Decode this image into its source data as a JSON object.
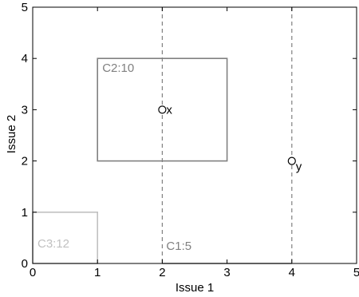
{
  "chart_data": {
    "type": "scatter",
    "xlabel": "Issue 1",
    "ylabel": "Issue 2",
    "xlim": [
      0,
      5
    ],
    "ylim": [
      0,
      5
    ],
    "xticks": [
      "0",
      "1",
      "2",
      "3",
      "4",
      "5"
    ],
    "yticks": [
      "0",
      "1",
      "2",
      "3",
      "4",
      "5"
    ],
    "grid": false,
    "points": [
      {
        "label": "x",
        "x": 2,
        "y": 3
      },
      {
        "label": "y",
        "x": 4,
        "y": 2
      }
    ],
    "vertical_lines": [
      {
        "x": 2,
        "style": "dashed"
      },
      {
        "x": 4,
        "style": "dashed"
      }
    ],
    "regions": [
      {
        "label": "C1:5",
        "x": [
          2,
          4
        ],
        "y": [
          0,
          0
        ],
        "color": "#808080"
      },
      {
        "label": "C2:10",
        "x": [
          1,
          3
        ],
        "y": [
          2,
          4
        ],
        "color": "#808080"
      },
      {
        "label": "C3:12",
        "x": [
          0,
          1
        ],
        "y": [
          0,
          1
        ],
        "color": "#c0c0c0"
      }
    ]
  }
}
